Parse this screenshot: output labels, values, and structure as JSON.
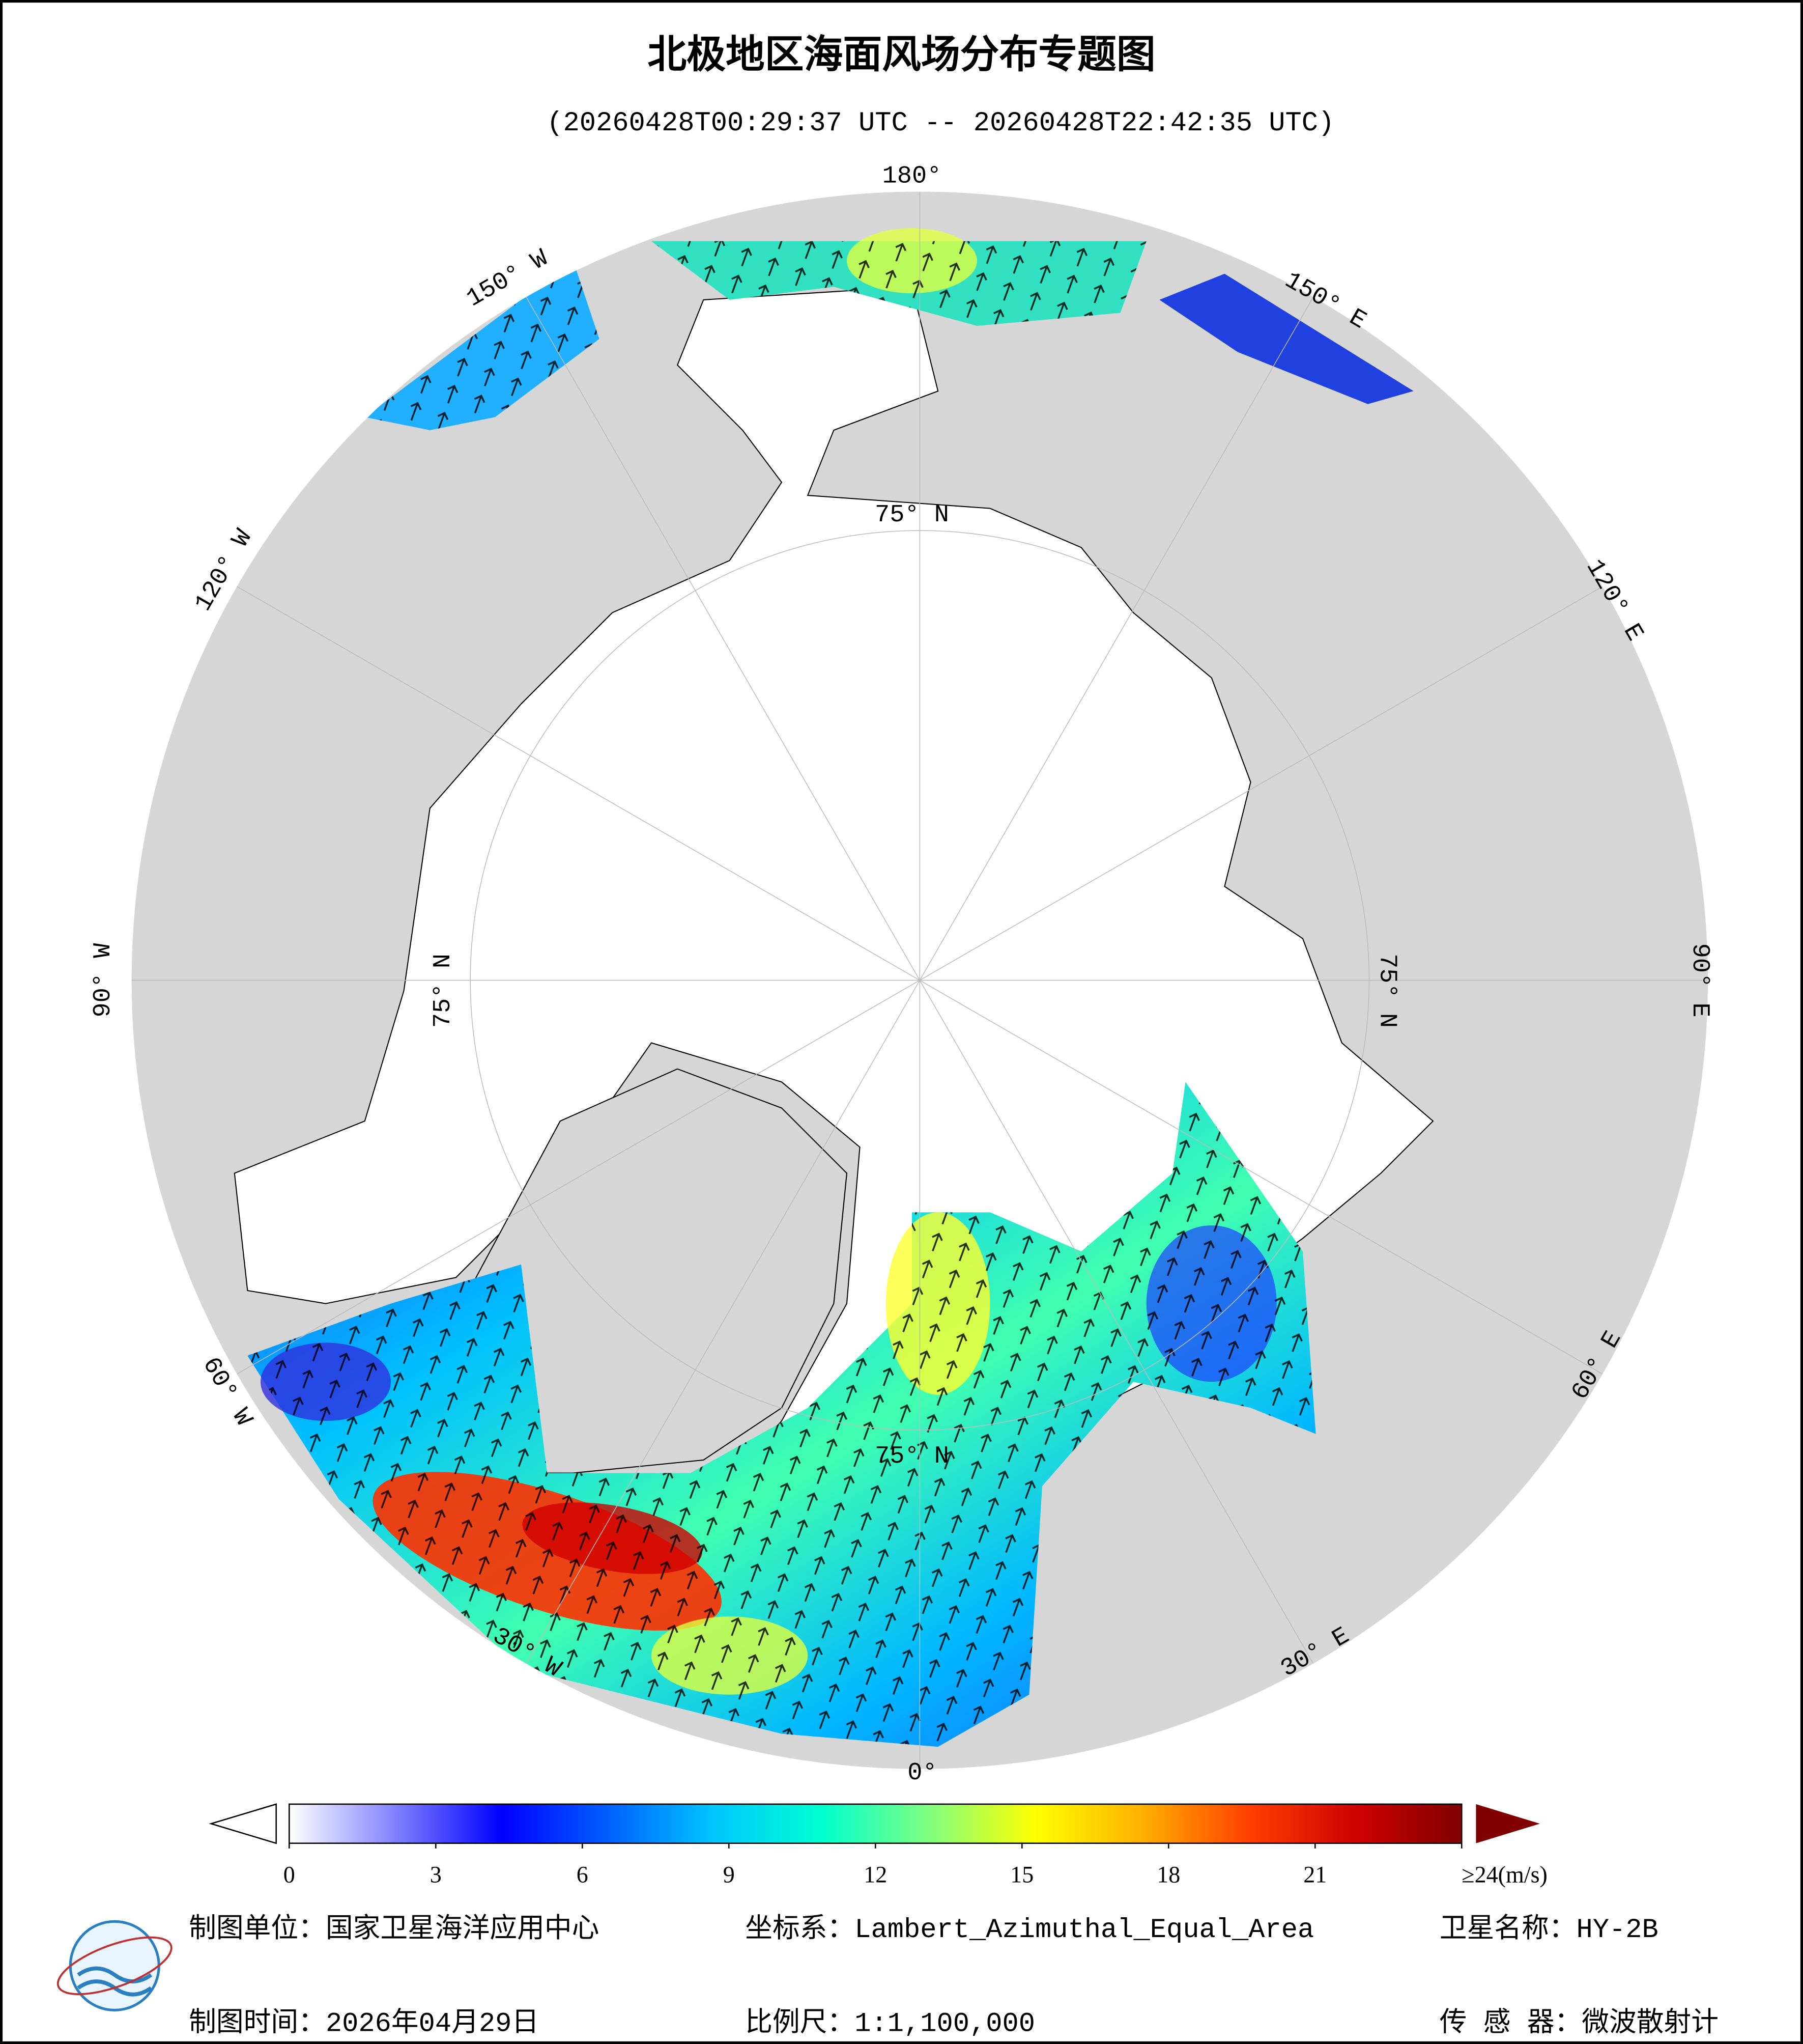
{
  "header": {
    "title": "北极地区海面风场分布专题图",
    "subtitle": "(20260428T00:29:37 UTC -- 20260428T22:42:35 UTC)"
  },
  "map": {
    "longitude_labels": [
      "180°",
      "150° E",
      "120° E",
      "90° E",
      "60° E",
      "30° E",
      "0°",
      "30° W",
      "60° W",
      "90° W",
      "120° W",
      "150° W"
    ],
    "latitude_labels": [
      "75° N",
      "75° N",
      "75° N",
      "75° N"
    ]
  },
  "colorbar": {
    "lim": [
      0,
      24
    ],
    "ticks": [
      0,
      3,
      6,
      9,
      12,
      15,
      18,
      21,
      {
        "value": 24,
        "label": "≥24(m/s)"
      }
    ],
    "colors": [
      "#ffffff",
      "#8080ff",
      "#0000ff",
      "#0060ff",
      "#00c8ff",
      "#00ffd0",
      "#80ff80",
      "#ffff00",
      "#ffb000",
      "#ff4000",
      "#d00000",
      "#800000"
    ]
  },
  "footer": {
    "unit": "制图单位：国家卫星海洋应用中心",
    "time": "制图时间：2026年04月29日",
    "crs": "坐标系：Lambert_Azimuthal_Equal_Area",
    "scale": "比例尺：1:1,100,000",
    "satellite": "卫星名称：HY-2B",
    "sensor": "传 感 器：微波散射计"
  }
}
